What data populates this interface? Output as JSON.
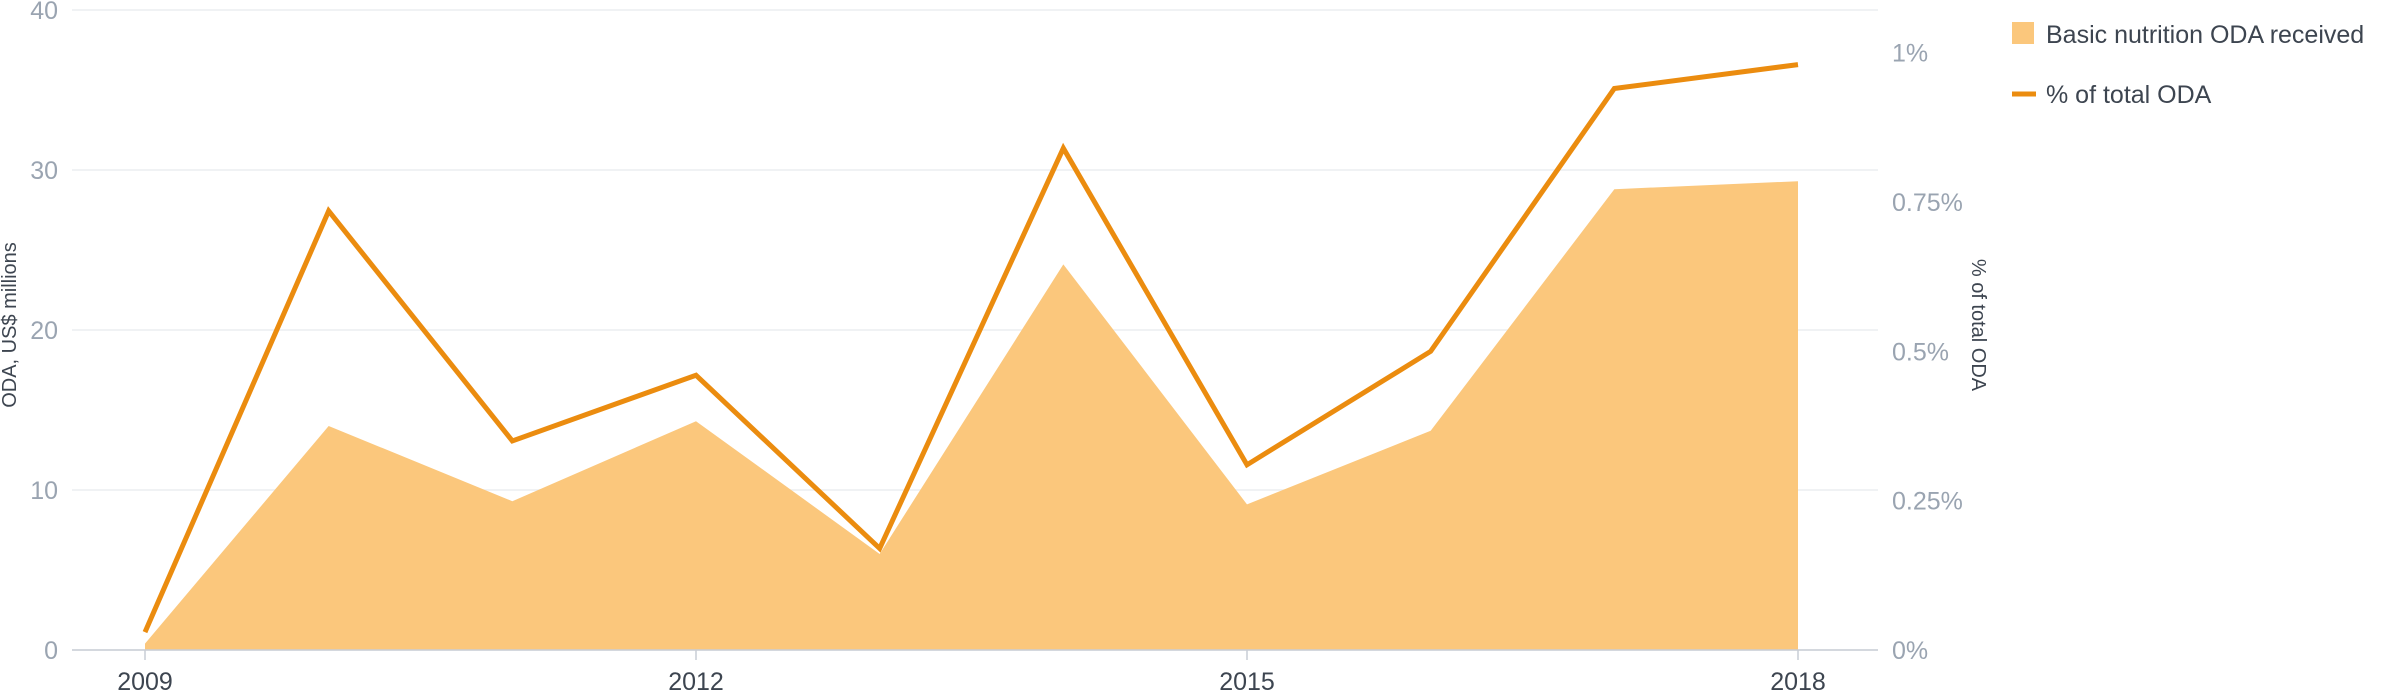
{
  "chart_data": {
    "type": "area",
    "x": [
      2009,
      2010,
      2011,
      2012,
      2013,
      2014,
      2015,
      2016,
      2017,
      2018
    ],
    "x_tick_labels": [
      "2009",
      "2012",
      "2015",
      "2018"
    ],
    "x_tick_values": [
      2009,
      2012,
      2015,
      2018
    ],
    "series": [
      {
        "name": "Basic nutrition ODA received",
        "kind": "area",
        "axis": "left",
        "color": "#fbc77c",
        "values": [
          0.4,
          14.0,
          9.3,
          14.3,
          6.0,
          24.1,
          9.1,
          13.7,
          28.8,
          29.3
        ]
      },
      {
        "name": "% of total ODA",
        "kind": "line",
        "axis": "right",
        "color": "#eb8c0f",
        "values": [
          0.03,
          0.735,
          0.35,
          0.46,
          0.17,
          0.84,
          0.31,
          0.5,
          0.94,
          0.98
        ]
      }
    ],
    "y_left": {
      "label": "ODA, US$ millions",
      "range": [
        0,
        40
      ],
      "ticks": [
        0,
        10,
        20,
        30,
        40
      ],
      "tick_labels": [
        "0",
        "10",
        "20",
        "30",
        "40"
      ]
    },
    "y_right": {
      "label": "% of total ODA",
      "range": [
        0,
        1.0714
      ],
      "ticks": [
        0,
        0.25,
        0.5,
        0.75,
        1.0
      ],
      "tick_labels": [
        "0%",
        "0.25%",
        "0.5%",
        "0.75%",
        "1%"
      ]
    },
    "grid": true,
    "legend_placement": "top-right",
    "title": ""
  }
}
